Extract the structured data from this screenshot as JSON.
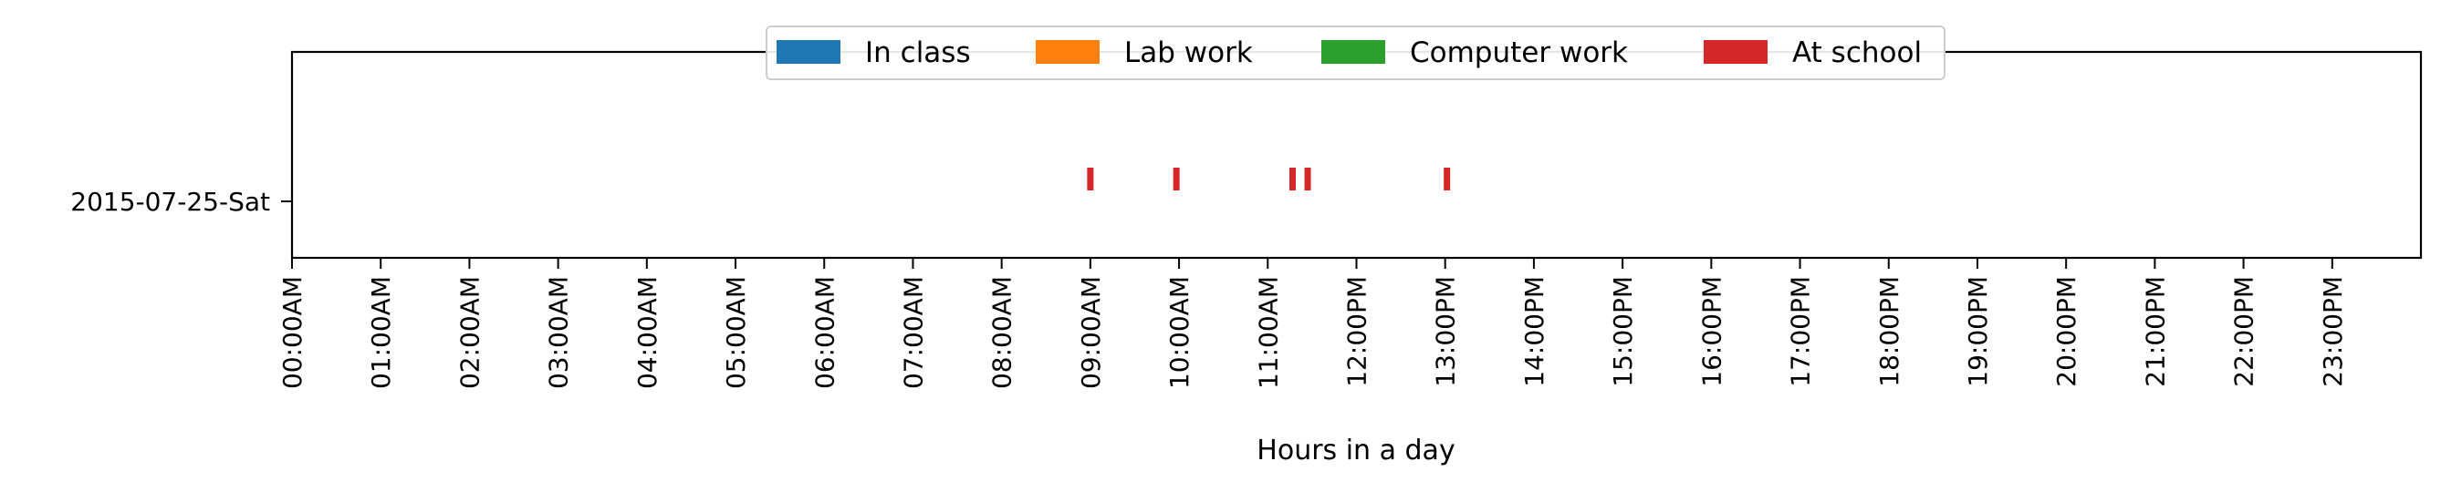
{
  "chart_data": {
    "type": "event-timeline",
    "xlabel": "Hours in a day",
    "ylabel": "",
    "xlim": [
      0,
      24
    ],
    "x_ticks": [
      "00:00AM",
      "01:00AM",
      "02:00AM",
      "03:00AM",
      "04:00AM",
      "05:00AM",
      "06:00AM",
      "07:00AM",
      "08:00AM",
      "09:00AM",
      "10:00AM",
      "11:00AM",
      "12:00PM",
      "13:00PM",
      "14:00PM",
      "15:00PM",
      "16:00PM",
      "17:00PM",
      "18:00PM",
      "19:00PM",
      "20:00PM",
      "21:00PM",
      "22:00PM",
      "23:00PM"
    ],
    "categories": [
      "2015-07-25-Sat"
    ],
    "legend_position": "top-center",
    "grid": false,
    "series": [
      {
        "name": "In class",
        "color": "#1f77b4",
        "events": []
      },
      {
        "name": "Lab work",
        "color": "#ff7f0e",
        "events": []
      },
      {
        "name": "Computer work",
        "color": "#2ca02c",
        "events": []
      },
      {
        "name": "At school",
        "color": "#d62728",
        "events": [
          {
            "day": "2015-07-25-Sat",
            "hours": [
              9.0,
              9.97,
              11.28,
              11.45,
              13.02
            ]
          }
        ]
      }
    ]
  }
}
